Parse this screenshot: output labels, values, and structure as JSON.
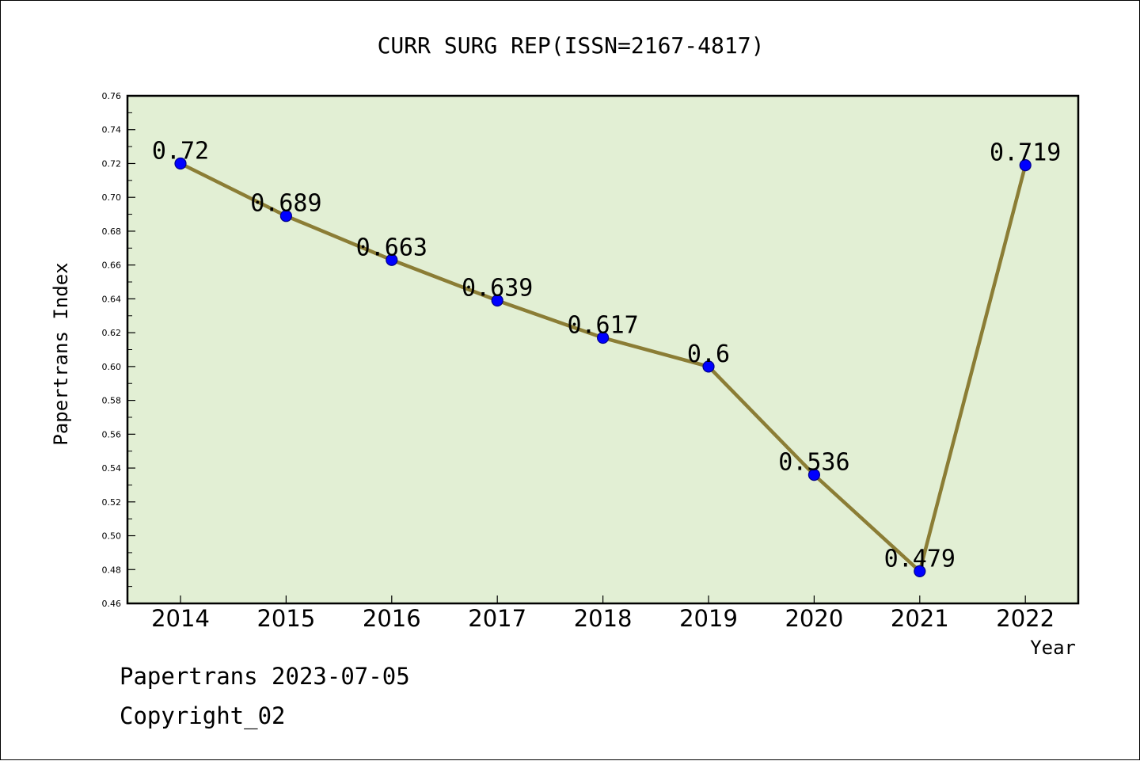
{
  "chart_data": {
    "type": "line",
    "title": "CURR SURG REP(ISSN=2167-4817)",
    "xlabel": "Year",
    "ylabel": "Papertrans Index",
    "categories": [
      "2014",
      "2015",
      "2016",
      "2017",
      "2018",
      "2019",
      "2020",
      "2021",
      "2022"
    ],
    "series": [
      {
        "values": [
          0.72,
          0.689,
          0.663,
          0.639,
          0.617,
          0.6,
          0.536,
          0.479,
          0.719
        ],
        "labels": [
          "0.72",
          "0.689",
          "0.663",
          "0.639",
          "0.617",
          "0.6",
          "0.536",
          "0.479",
          "0.719"
        ]
      }
    ],
    "ylim": [
      0.46,
      0.76
    ],
    "yticks": [
      "0.46",
      "0.48",
      "0.50",
      "0.52",
      "0.54",
      "0.56",
      "0.58",
      "0.60",
      "0.62",
      "0.64",
      "0.66",
      "0.68",
      "0.70",
      "0.72",
      "0.74",
      "0.76"
    ],
    "grid": false,
    "colors": {
      "plot_background": "#e2efd4",
      "line": "#8b7d35",
      "marker": "#0000ff"
    }
  },
  "footer": {
    "line1": "Papertrans 2023-07-05",
    "line2": "Copyright_02"
  }
}
